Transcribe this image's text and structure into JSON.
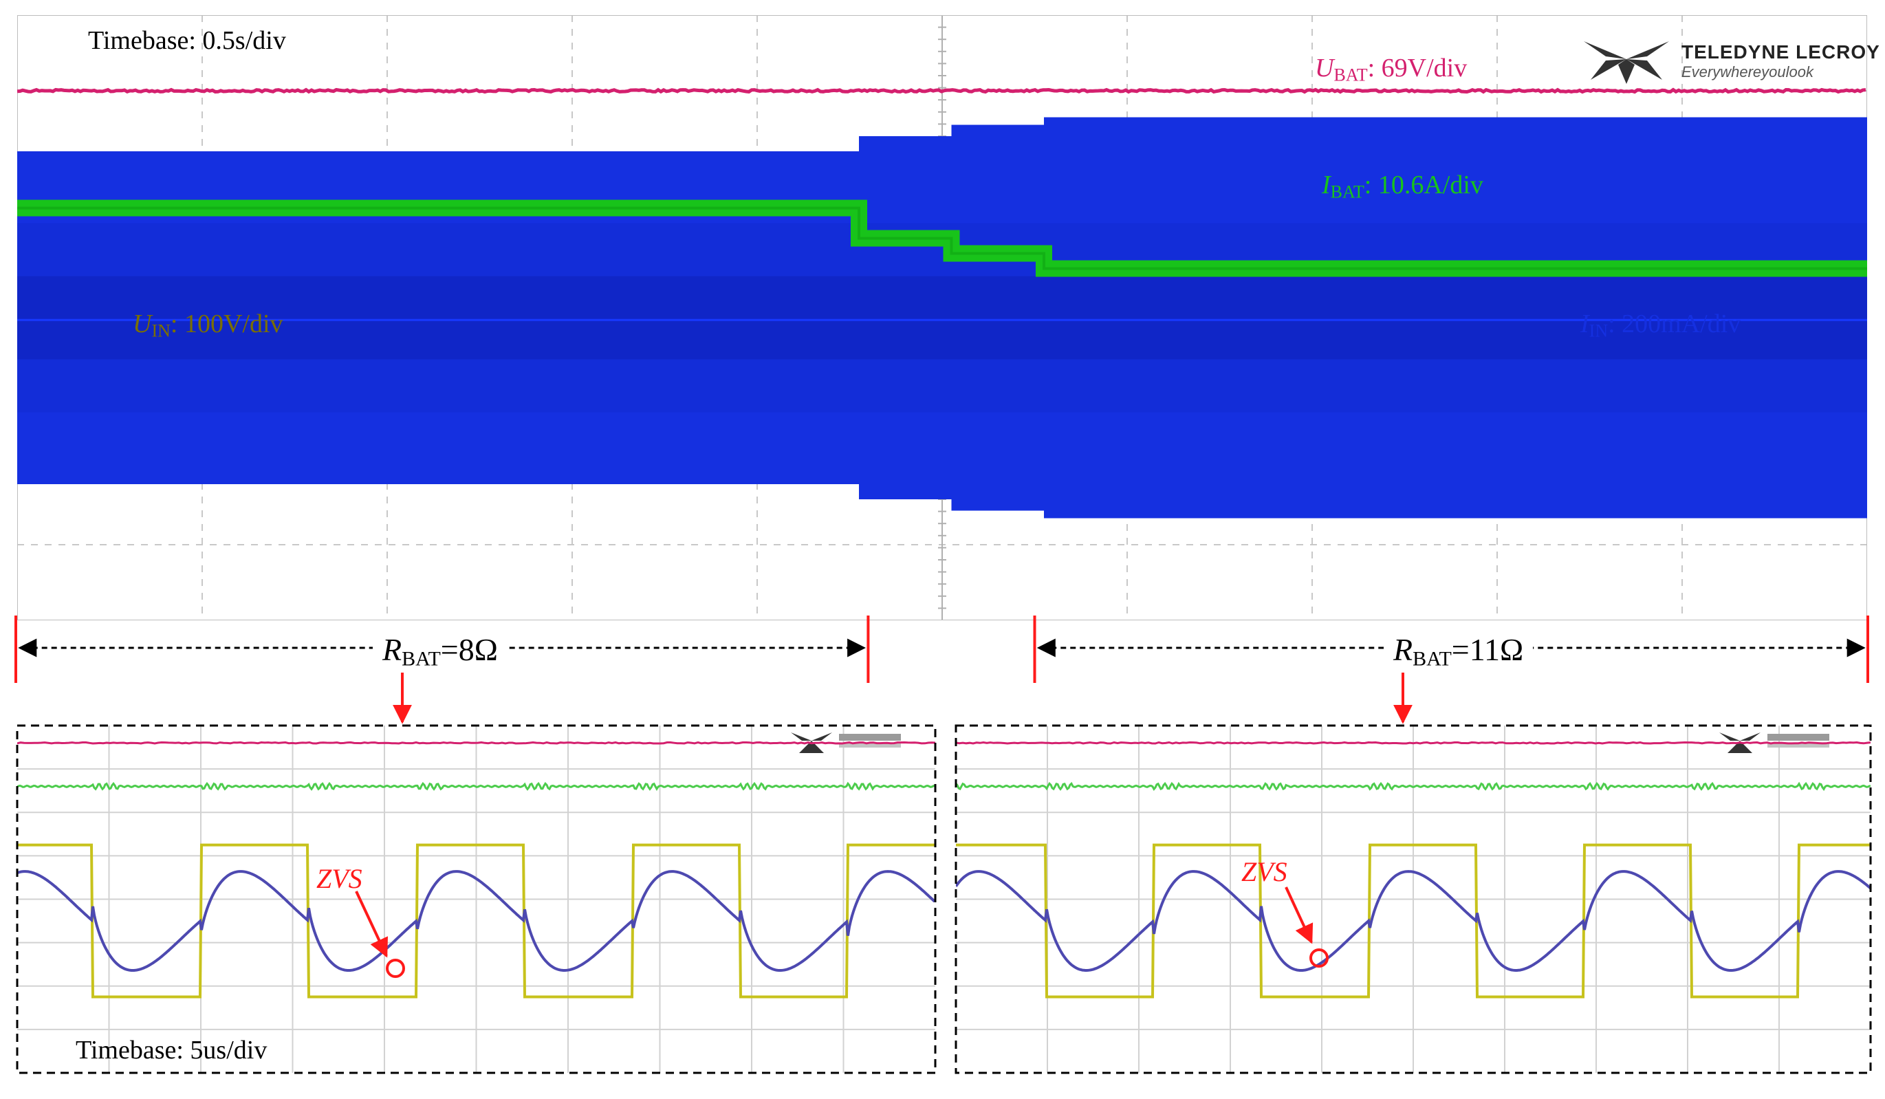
{
  "main_scope": {
    "timebase": "Timebase: 0.5s/div",
    "brand": {
      "name": "TELEDYNE LECROY",
      "tagline": "Everywhereyoulook"
    },
    "channels": [
      {
        "symbol": "U",
        "subscript": "BAT",
        "scale": ": 69V/div",
        "color": "#d4206e"
      },
      {
        "symbol": "I",
        "subscript": "BAT",
        "scale": ": 10.6A/div",
        "color": "#18c31a"
      },
      {
        "symbol": "U",
        "subscript": "IN",
        "scale": ": 100V/div",
        "color": "#7a6f00"
      },
      {
        "symbol": "I",
        "subscript": "IN",
        "scale": ": 200mA/div",
        "color": "#1530e0"
      }
    ]
  },
  "intervals": [
    {
      "symbol": "R",
      "subscript": "BAT",
      "value": "=8Ω"
    },
    {
      "symbol": "R",
      "subscript": "BAT",
      "value": "=11Ω"
    }
  ],
  "zoom_scopes": {
    "timebase": "Timebase: 5us/div",
    "annotation": "ZVS"
  },
  "colors": {
    "grid": "#c8c8c8",
    "ubat": "#d4206e",
    "ibat": "#18c31a",
    "uin": "#7a6f00",
    "iin": "#1530e0",
    "uin_zoom": "#c7c21c",
    "iin_zoom": "#4d49b0",
    "ibat_zoom": "#4ccc4c",
    "marker": "#ff1a1a"
  },
  "chart_data": [
    {
      "type": "line",
      "title": "",
      "xlabel": "",
      "ylabel": "",
      "grid": true,
      "x_divisions": 10,
      "y_divisions": 8,
      "x_unit": "0.5s/div",
      "series": [
        {
          "name": "U_BAT",
          "x": [
            0,
            10
          ],
          "y": [
            3.0,
            3.0
          ]
        },
        {
          "name": "I_BAT",
          "x": [
            0,
            4.55,
            4.55,
            5.05,
            5.05,
            5.55,
            5.55,
            10
          ],
          "y": [
            1.45,
            1.45,
            1.05,
            1.05,
            0.85,
            0.85,
            0.65,
            0.65
          ]
        },
        {
          "name": "U_IN envelope",
          "x": [
            0,
            10
          ],
          "y": [
            -1.95,
            -1.95
          ]
        },
        {
          "name": "I_IN envelope",
          "x": [
            0,
            4.55,
            4.55,
            5.05,
            5.05,
            5.55,
            5.55,
            10
          ],
          "y": [
            -2.2,
            -2.2,
            -2.4,
            -2.4,
            -2.55,
            -2.55,
            -2.65,
            -2.65
          ]
        }
      ],
      "intervals": [
        {
          "label": "R_BAT=8Ω",
          "x_start": 0,
          "x_end": 4.6
        },
        {
          "label": "R_BAT=11Ω",
          "x_start": 5.5,
          "x_end": 10
        }
      ]
    },
    {
      "type": "line",
      "title": "",
      "grid": true,
      "x_divisions": 10,
      "x_unit": "5us/div",
      "square_period_div": 2.35,
      "series": [
        {
          "name": "U_BAT",
          "shape": "flat"
        },
        {
          "name": "I_BAT",
          "shape": "flat with small ripple"
        },
        {
          "name": "U_IN",
          "shape": "square wave"
        },
        {
          "name": "I_IN",
          "shape": "quasi-sinusoid"
        }
      ],
      "annotation": "ZVS"
    },
    {
      "type": "line",
      "title": "",
      "grid": true,
      "x_divisions": 10,
      "x_unit": "5us/div",
      "square_period_div": 2.35,
      "series": [
        {
          "name": "U_BAT",
          "shape": "flat"
        },
        {
          "name": "I_BAT",
          "shape": "flat with small ripple"
        },
        {
          "name": "U_IN",
          "shape": "square wave"
        },
        {
          "name": "I_IN",
          "shape": "quasi-sinusoid"
        }
      ],
      "annotation": "ZVS"
    }
  ]
}
